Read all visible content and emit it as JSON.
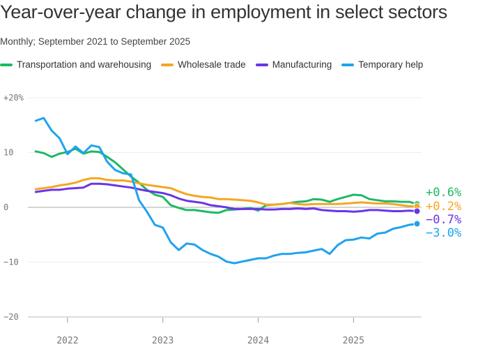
{
  "title": "Year-over-year change in employment in select sectors",
  "subtitle": "Monthly; September 2021 to September 2025",
  "chart_data": {
    "type": "line",
    "title": "Year-over-year change in employment in select sectors",
    "subtitle": "Monthly; September 2021 to September 2025",
    "x_start": "2021-09",
    "x_end": "2025-09",
    "x_frequency": "monthly",
    "x_ticks": [
      "2022",
      "2023",
      "2024",
      "2025"
    ],
    "y_ticks": [
      "+20%",
      "10",
      "0",
      "−10",
      "−20"
    ],
    "ylim": [
      -20,
      20
    ],
    "grid": true,
    "legend": "top",
    "series": [
      {
        "name": "Transportation and warehousing",
        "color": "#1db964",
        "end_label": "+0.6%",
        "values": [
          10.2,
          9.9,
          9.2,
          9.8,
          10.1,
          10.7,
          9.8,
          10.2,
          10.1,
          9.2,
          8.2,
          6.9,
          5.6,
          4.5,
          3.2,
          2.3,
          1.9,
          0.4,
          -0.1,
          -0.5,
          -0.5,
          -0.7,
          -0.9,
          -1.0,
          -0.5,
          -0.4,
          -0.3,
          -0.1,
          -0.6,
          0.4,
          0.5,
          0.6,
          0.8,
          1.0,
          1.1,
          1.5,
          1.4,
          1.0,
          1.5,
          1.9,
          2.3,
          2.2,
          1.5,
          1.3,
          1.1,
          1.1,
          1.0,
          1.0,
          0.6
        ]
      },
      {
        "name": "Wholesale trade",
        "color": "#f5a623",
        "end_label": "+0.2%",
        "values": [
          3.3,
          3.5,
          3.7,
          4.0,
          4.2,
          4.5,
          5.0,
          5.3,
          5.3,
          5.0,
          4.9,
          4.9,
          4.7,
          4.4,
          4.1,
          3.9,
          3.7,
          3.5,
          2.9,
          2.4,
          2.1,
          1.9,
          1.8,
          1.5,
          1.5,
          1.4,
          1.3,
          1.2,
          0.9,
          0.5,
          0.5,
          0.6,
          0.8,
          0.6,
          0.5,
          0.6,
          0.6,
          0.6,
          0.6,
          0.7,
          0.8,
          0.9,
          0.8,
          0.7,
          0.7,
          0.6,
          0.4,
          0.2,
          0.2
        ]
      },
      {
        "name": "Manufacturing",
        "color": "#6a35e8",
        "end_label": "−0.7%",
        "values": [
          2.8,
          3.0,
          3.2,
          3.2,
          3.4,
          3.5,
          3.6,
          4.3,
          4.3,
          4.2,
          4.0,
          3.8,
          3.6,
          3.3,
          3.0,
          2.8,
          2.6,
          2.2,
          1.6,
          1.2,
          1.0,
          0.8,
          0.4,
          0.2,
          0.0,
          -0.3,
          -0.3,
          -0.3,
          -0.3,
          -0.4,
          -0.4,
          -0.3,
          -0.3,
          -0.2,
          -0.3,
          -0.2,
          -0.5,
          -0.6,
          -0.7,
          -0.7,
          -0.8,
          -0.7,
          -0.5,
          -0.5,
          -0.6,
          -0.7,
          -0.7,
          -0.6,
          -0.7
        ]
      },
      {
        "name": "Temporary help",
        "color": "#1fa2f0",
        "end_label": "−3.0%",
        "values": [
          15.8,
          16.3,
          14.0,
          12.6,
          9.7,
          11.1,
          9.9,
          11.3,
          11.0,
          8.3,
          6.8,
          6.2,
          6.0,
          1.3,
          -0.8,
          -3.2,
          -3.7,
          -6.4,
          -7.8,
          -6.6,
          -6.8,
          -7.8,
          -8.5,
          -9.0,
          -9.9,
          -10.2,
          -9.9,
          -9.6,
          -9.3,
          -9.3,
          -8.8,
          -8.5,
          -8.5,
          -8.3,
          -8.2,
          -7.9,
          -7.6,
          -8.5,
          -6.9,
          -6.0,
          -5.9,
          -5.5,
          -5.7,
          -4.8,
          -4.6,
          -3.9,
          -3.6,
          -3.2,
          -3.0
        ]
      }
    ]
  }
}
